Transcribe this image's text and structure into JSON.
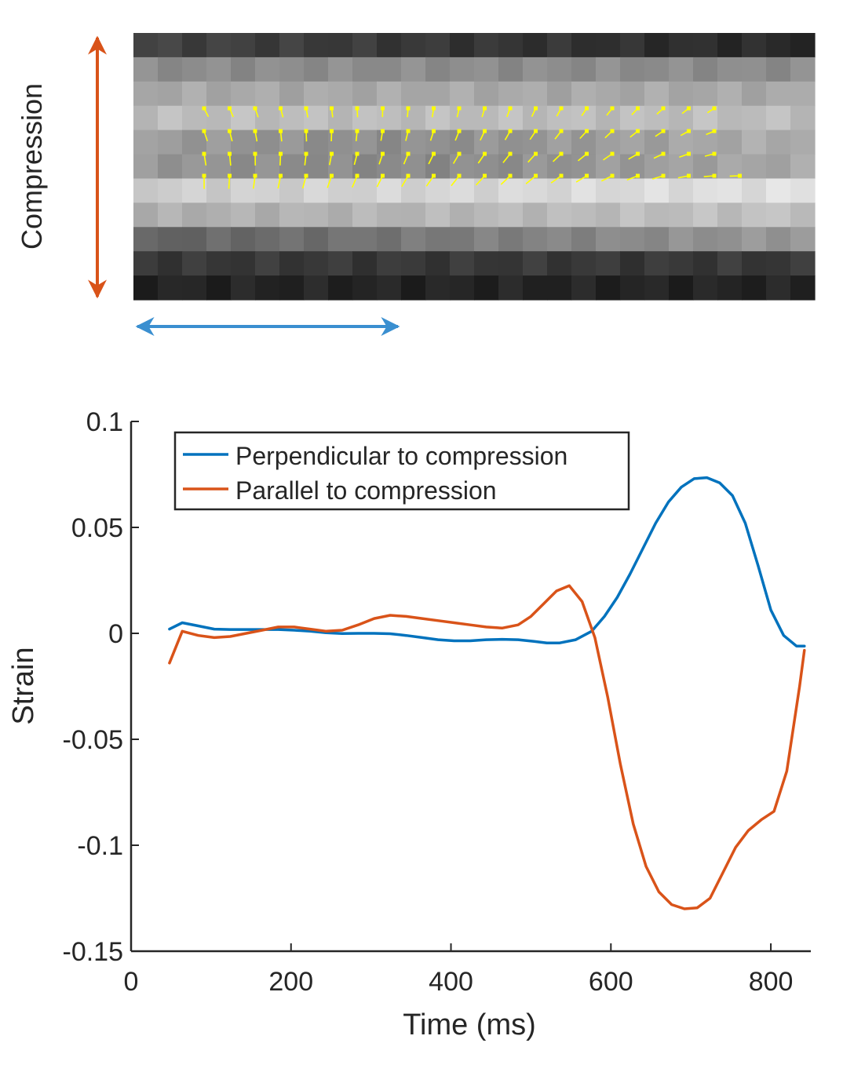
{
  "figure": {
    "compression_label": "Compression",
    "colors": {
      "compression_arrow": "#D95319",
      "perpendicular_arrow": "#3A8FD0",
      "vector_field": "#FFFF00",
      "axis": "#262626"
    }
  },
  "image_panel": {
    "grid_cols": 28,
    "grid_rows": 11,
    "row_gray_levels": [
      0.26,
      0.55,
      0.66,
      0.74,
      0.62,
      0.6,
      0.8,
      0.68,
      0.38,
      0.22,
      0.14
    ]
  },
  "chart_data": {
    "type": "line",
    "title": "",
    "xlabel": "Time (ms)",
    "ylabel": "Strain",
    "xlim": [
      0,
      850
    ],
    "ylim": [
      -0.15,
      0.1
    ],
    "xticks": [
      0,
      200,
      400,
      600,
      800
    ],
    "xtick_labels": [
      "0",
      "200",
      "400",
      "600",
      "800"
    ],
    "yticks": [
      -0.15,
      -0.1,
      -0.05,
      0,
      0.05,
      0.1
    ],
    "ytick_labels": [
      "-0.15",
      "-0.1",
      "-0.05",
      "0",
      "0.05",
      "0.1"
    ],
    "grid": false,
    "legend_position": "top-left",
    "series": [
      {
        "name": "Perpendicular to compression",
        "color": "#0072BD",
        "x": [
          48,
          64,
          84,
          104,
          124,
          144,
          164,
          184,
          204,
          224,
          244,
          264,
          284,
          304,
          324,
          344,
          364,
          384,
          404,
          424,
          444,
          464,
          484,
          504,
          520,
          536,
          556,
          576,
          592,
          608,
          624,
          640,
          656,
          672,
          688,
          704,
          720,
          736,
          752,
          768,
          784,
          800,
          816,
          832,
          842
        ],
        "y": [
          0.002,
          0.005,
          0.0035,
          0.002,
          0.0018,
          0.0018,
          0.0018,
          0.0018,
          0.0015,
          0.001,
          0.0003,
          -0.0001,
          0.0,
          0.0,
          -0.0002,
          -0.001,
          -0.002,
          -0.003,
          -0.0035,
          -0.0035,
          -0.003,
          -0.0028,
          -0.003,
          -0.0038,
          -0.0045,
          -0.0045,
          -0.003,
          0.001,
          0.008,
          0.017,
          0.028,
          0.04,
          0.052,
          0.062,
          0.069,
          0.073,
          0.0735,
          0.071,
          0.065,
          0.052,
          0.032,
          0.011,
          -0.001,
          -0.006,
          -0.006
        ]
      },
      {
        "name": "Parallel to compression",
        "color": "#D95319",
        "x": [
          48,
          64,
          84,
          104,
          124,
          144,
          164,
          184,
          204,
          224,
          244,
          264,
          284,
          304,
          324,
          344,
          364,
          384,
          404,
          424,
          444,
          464,
          484,
          500,
          516,
          532,
          548,
          564,
          580,
          596,
          612,
          628,
          644,
          660,
          676,
          692,
          708,
          724,
          740,
          756,
          772,
          788,
          804,
          820,
          836,
          842
        ],
        "y": [
          -0.014,
          0.001,
          -0.001,
          -0.002,
          -0.0015,
          0.0,
          0.0015,
          0.003,
          0.003,
          0.002,
          0.001,
          0.0015,
          0.004,
          0.007,
          0.0085,
          0.008,
          0.007,
          0.006,
          0.005,
          0.004,
          0.003,
          0.0025,
          0.004,
          0.008,
          0.014,
          0.02,
          0.0225,
          0.015,
          -0.002,
          -0.03,
          -0.062,
          -0.09,
          -0.11,
          -0.122,
          -0.128,
          -0.13,
          -0.1295,
          -0.125,
          -0.113,
          -0.101,
          -0.093,
          -0.088,
          -0.084,
          -0.065,
          -0.025,
          -0.008
        ]
      }
    ]
  }
}
